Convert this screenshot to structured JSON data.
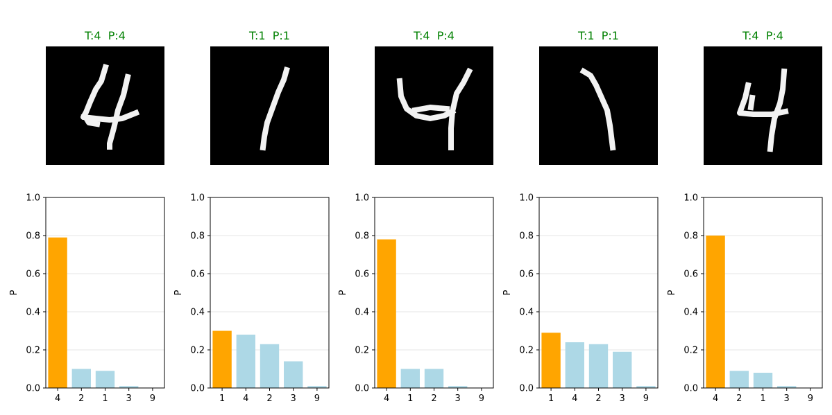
{
  "colors": {
    "title_correct": "#008000",
    "bar_top": "#ffa500",
    "bar_other": "#add8e6",
    "image_background": "#000000",
    "image_stroke": "#ffffff"
  },
  "panels": [
    {
      "title": "T:4  P:4",
      "image": {
        "icon": "handwritten-digit-4",
        "depicted_digit": "4"
      },
      "chart": {
        "type": "bar",
        "categories": [
          "4",
          "2",
          "1",
          "3",
          "9"
        ],
        "values": [
          0.79,
          0.1,
          0.09,
          0.01,
          0.0
        ],
        "highlight_index": 0,
        "ylabel": "P",
        "ylim": [
          0,
          1.0
        ],
        "yticks": [
          "0.0",
          "0.2",
          "0.4",
          "0.6",
          "0.8",
          "1.0"
        ],
        "grid": "horizontal"
      }
    },
    {
      "title": "T:1  P:1",
      "image": {
        "icon": "handwritten-digit-1",
        "depicted_digit": "1"
      },
      "chart": {
        "type": "bar",
        "categories": [
          "1",
          "4",
          "2",
          "3",
          "9"
        ],
        "values": [
          0.3,
          0.28,
          0.23,
          0.14,
          0.01
        ],
        "highlight_index": 0,
        "ylabel": "P",
        "ylim": [
          0,
          1.0
        ],
        "yticks": [
          "0.0",
          "0.2",
          "0.4",
          "0.6",
          "0.8",
          "1.0"
        ],
        "grid": "horizontal"
      }
    },
    {
      "title": "T:4  P:4",
      "image": {
        "icon": "handwritten-digit-4",
        "depicted_digit": "4"
      },
      "chart": {
        "type": "bar",
        "categories": [
          "4",
          "1",
          "2",
          "3",
          "9"
        ],
        "values": [
          0.78,
          0.1,
          0.1,
          0.01,
          0.0
        ],
        "highlight_index": 0,
        "ylabel": "P",
        "ylim": [
          0,
          1.0
        ],
        "yticks": [
          "0.0",
          "0.2",
          "0.4",
          "0.6",
          "0.8",
          "1.0"
        ],
        "grid": "horizontal"
      }
    },
    {
      "title": "T:1  P:1",
      "image": {
        "icon": "handwritten-digit-1",
        "depicted_digit": "1"
      },
      "chart": {
        "type": "bar",
        "categories": [
          "1",
          "4",
          "2",
          "3",
          "9"
        ],
        "values": [
          0.29,
          0.24,
          0.23,
          0.19,
          0.01
        ],
        "highlight_index": 0,
        "ylabel": "P",
        "ylim": [
          0,
          1.0
        ],
        "yticks": [
          "0.0",
          "0.2",
          "0.4",
          "0.6",
          "0.8",
          "1.0"
        ],
        "grid": "horizontal"
      }
    },
    {
      "title": "T:4  P:4",
      "image": {
        "icon": "handwritten-digit-4",
        "depicted_digit": "4"
      },
      "chart": {
        "type": "bar",
        "categories": [
          "4",
          "2",
          "1",
          "3",
          "9"
        ],
        "values": [
          0.8,
          0.09,
          0.08,
          0.01,
          0.0
        ],
        "highlight_index": 0,
        "ylabel": "P",
        "ylim": [
          0,
          1.0
        ],
        "yticks": [
          "0.0",
          "0.2",
          "0.4",
          "0.6",
          "0.8",
          "1.0"
        ],
        "grid": "horizontal"
      }
    }
  ]
}
